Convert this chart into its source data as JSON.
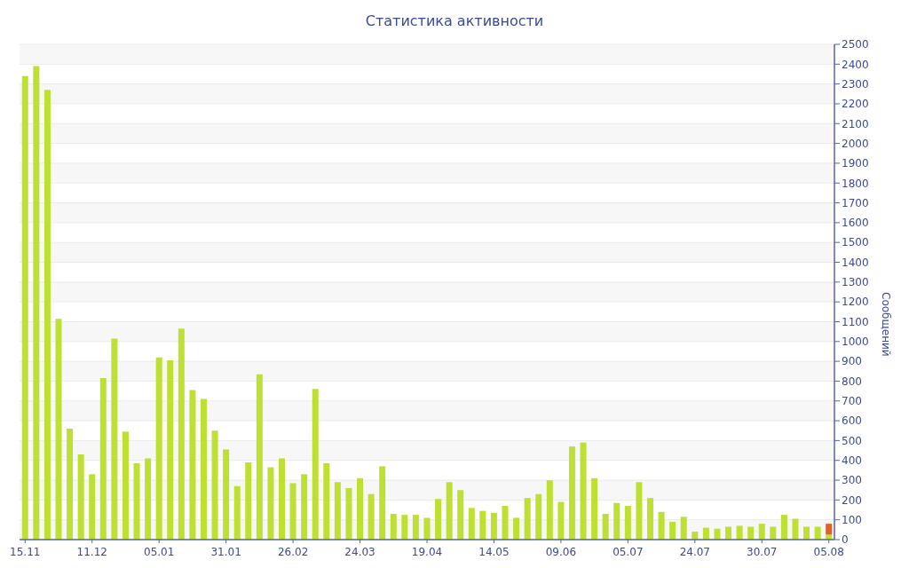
{
  "chart_data": {
    "type": "bar",
    "title": "Статистика активности",
    "ylabel": "Сообщений",
    "categories": [
      "15.11",
      null,
      null,
      null,
      null,
      null,
      "11.12",
      null,
      null,
      null,
      null,
      null,
      "05.01",
      null,
      null,
      null,
      null,
      null,
      "31.01",
      null,
      null,
      null,
      null,
      null,
      "26.02",
      null,
      null,
      null,
      null,
      null,
      "24.03",
      null,
      null,
      null,
      null,
      null,
      "19.04",
      null,
      null,
      null,
      null,
      null,
      "14.05",
      null,
      null,
      null,
      null,
      null,
      "09.06",
      null,
      null,
      null,
      null,
      null,
      "05.07",
      null,
      null,
      null,
      null,
      null,
      "24.07",
      null,
      null,
      null,
      null,
      null,
      "30.07",
      null,
      null,
      null,
      null,
      null,
      "05.08"
    ],
    "series": [
      {
        "color": "#bde032",
        "values": [
          2340,
          2390,
          2270,
          1115,
          560,
          430,
          330,
          815,
          1015,
          545,
          385,
          410,
          920,
          905,
          1065,
          755,
          710,
          550,
          455,
          270,
          390,
          835,
          365,
          410,
          285,
          330,
          760,
          385,
          290,
          260,
          310,
          230,
          370,
          130,
          125,
          125,
          110,
          205,
          290,
          250,
          160,
          145,
          135,
          170,
          110,
          210,
          230,
          300,
          190,
          470,
          490,
          310,
          130,
          185,
          170,
          290,
          210,
          140,
          90,
          115,
          40,
          60,
          55,
          65,
          70,
          65,
          80,
          65,
          125,
          105,
          65,
          65,
          25
        ]
      },
      {
        "color": "#e0622a",
        "values": [
          null,
          null,
          null,
          null,
          null,
          null,
          null,
          null,
          null,
          null,
          null,
          null,
          null,
          null,
          null,
          null,
          null,
          null,
          null,
          null,
          null,
          null,
          null,
          null,
          null,
          null,
          null,
          null,
          null,
          null,
          null,
          null,
          null,
          null,
          null,
          null,
          null,
          null,
          null,
          null,
          null,
          null,
          null,
          null,
          null,
          null,
          null,
          null,
          null,
          null,
          null,
          null,
          null,
          null,
          null,
          null,
          null,
          null,
          null,
          null,
          null,
          null,
          null,
          null,
          null,
          null,
          null,
          null,
          null,
          null,
          null,
          null,
          55
        ]
      }
    ],
    "stacked": true,
    "ylim": [
      0,
      2500
    ],
    "yticks": [
      0,
      100,
      200,
      300,
      400,
      500,
      600,
      700,
      800,
      900,
      1000,
      1100,
      1200,
      1300,
      1400,
      1500,
      1600,
      1700,
      1800,
      1900,
      2000,
      2100,
      2200,
      2300,
      2400,
      2500
    ],
    "grid": "y",
    "legend": false
  }
}
